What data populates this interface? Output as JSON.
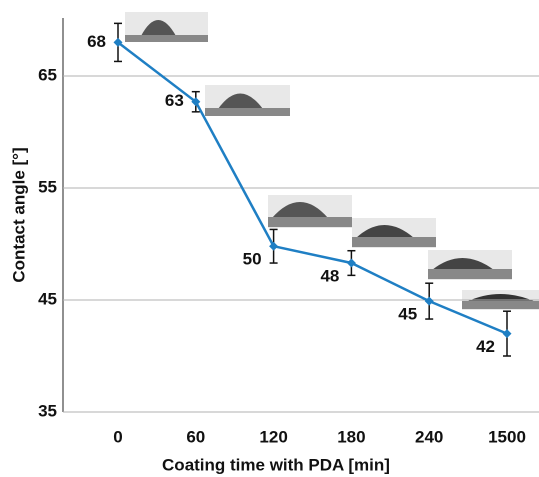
{
  "chart_data": {
    "type": "line",
    "x_label": "Coating time with PDA [min]",
    "y_label": "Contact angle [°]",
    "categories": [
      "0",
      "60",
      "120",
      "180",
      "240",
      "1500"
    ],
    "values": [
      68,
      62.7,
      49.8,
      48.3,
      44.9,
      42.0
    ],
    "value_labels": [
      "68",
      "63",
      "50",
      "48",
      "45",
      "42"
    ],
    "errors": [
      1.7,
      0.9,
      1.5,
      1.1,
      1.6,
      2.0
    ],
    "color": "#1f7fc4",
    "ylim": [
      35,
      70
    ],
    "yticks": [
      35,
      45,
      55,
      65
    ],
    "grid": true
  }
}
